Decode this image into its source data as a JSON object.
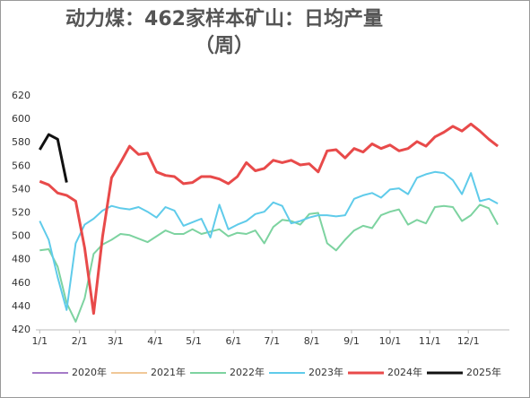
{
  "chart_data": {
    "type": "line",
    "title": "动力煤：462家样本矿山：日均产量",
    "subtitle": "（周）",
    "x": [
      1,
      8,
      15,
      22,
      29,
      36,
      43,
      50,
      57,
      64,
      71,
      78,
      85,
      92,
      99,
      106,
      113,
      120,
      127,
      134,
      141,
      148,
      155,
      162,
      169,
      176,
      183,
      190,
      197,
      204,
      211,
      218,
      225,
      232,
      239,
      246,
      253,
      260,
      267,
      274,
      281,
      288,
      295,
      302,
      309,
      316,
      323,
      330,
      337,
      344,
      351,
      358
    ],
    "xlim": [
      -2,
      367
    ],
    "xticks": [
      {
        "value": 1,
        "label": "1/1"
      },
      {
        "value": 32,
        "label": "2/1"
      },
      {
        "value": 60,
        "label": "3/1"
      },
      {
        "value": 91,
        "label": "4/1"
      },
      {
        "value": 121,
        "label": "5/1"
      },
      {
        "value": 152,
        "label": "6/1"
      },
      {
        "value": 182,
        "label": "7/1"
      },
      {
        "value": 213,
        "label": "8/1"
      },
      {
        "value": 244,
        "label": "9/1"
      },
      {
        "value": 274,
        "label": "10/1"
      },
      {
        "value": 305,
        "label": "11/1"
      },
      {
        "value": 335,
        "label": "12/1"
      }
    ],
    "ylim": [
      420,
      620
    ],
    "yticks": [
      420,
      440,
      460,
      480,
      500,
      520,
      540,
      560,
      580,
      600,
      620
    ],
    "grid": false,
    "legend": "bottom",
    "series": [
      {
        "name": "2020年",
        "color": "#a57bc8",
        "values": [
          null,
          null,
          null,
          null,
          null,
          null,
          null,
          null,
          null,
          null,
          null,
          null,
          null,
          null,
          null,
          null,
          null,
          null,
          null,
          null,
          null,
          null,
          null,
          null,
          null,
          null,
          null,
          null,
          null,
          null,
          null,
          null,
          null,
          null,
          null,
          null,
          null,
          null,
          null,
          null,
          null,
          null,
          null,
          null,
          null,
          null,
          null,
          null,
          null,
          null,
          null,
          null
        ]
      },
      {
        "name": "2021年",
        "color": "#f0c898",
        "values": [
          null,
          null,
          null,
          null,
          null,
          null,
          null,
          null,
          null,
          null,
          null,
          null,
          null,
          null,
          null,
          null,
          null,
          null,
          null,
          null,
          null,
          null,
          null,
          null,
          null,
          null,
          null,
          null,
          null,
          null,
          null,
          null,
          null,
          null,
          null,
          null,
          null,
          null,
          null,
          null,
          null,
          null,
          null,
          null,
          null,
          null,
          null,
          null,
          null,
          null,
          null,
          null
        ]
      },
      {
        "name": "2022年",
        "color": "#7dd3a0",
        "values": [
          488,
          489,
          474,
          443,
          427,
          447,
          485,
          493,
          497,
          502,
          501,
          498,
          495,
          500,
          505,
          502,
          502,
          506,
          502,
          504,
          506,
          500,
          503,
          502,
          505,
          494,
          508,
          514,
          513,
          510,
          519,
          520,
          494,
          488,
          497,
          505,
          509,
          507,
          518,
          521,
          523,
          510,
          514,
          511,
          525,
          526,
          525,
          513,
          518,
          527,
          524,
          510
        ]
      },
      {
        "name": "2023年",
        "color": "#5fcbea",
        "values": [
          513,
          497,
          465,
          437,
          494,
          510,
          515,
          522,
          526,
          524,
          523,
          525,
          521,
          516,
          525,
          522,
          509,
          512,
          515,
          499,
          527,
          506,
          510,
          513,
          519,
          521,
          529,
          526,
          511,
          513,
          516,
          518,
          518,
          517,
          518,
          532,
          535,
          537,
          533,
          540,
          541,
          536,
          550,
          553,
          555,
          554,
          548,
          536,
          554,
          530,
          532,
          528
        ]
      },
      {
        "name": "2024年",
        "color": "#e84a4a",
        "values": [
          547,
          544,
          537,
          535,
          530,
          490,
          434,
          500,
          550,
          563,
          577,
          570,
          571,
          555,
          552,
          551,
          545,
          546,
          551,
          551,
          549,
          545,
          551,
          563,
          556,
          558,
          565,
          563,
          565,
          561,
          562,
          555,
          573,
          574,
          567,
          575,
          572,
          579,
          575,
          578,
          573,
          575,
          581,
          577,
          585,
          589,
          594,
          590,
          596,
          590,
          583,
          577
        ]
      },
      {
        "name": "2025年",
        "color": "#111111",
        "values": [
          574,
          587,
          583,
          546,
          null,
          null,
          null,
          null,
          null,
          null,
          null,
          null,
          null,
          null,
          null,
          null,
          null,
          null,
          null,
          null,
          null,
          null,
          null,
          null,
          null,
          null,
          null,
          null,
          null,
          null,
          null,
          null,
          null,
          null,
          null,
          null,
          null,
          null,
          null,
          null,
          null,
          null,
          null,
          null,
          null,
          null,
          null,
          null,
          null,
          null,
          null,
          null
        ]
      }
    ]
  }
}
